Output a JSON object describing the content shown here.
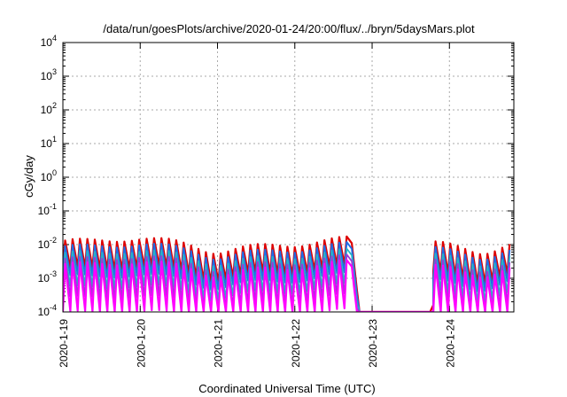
{
  "chart_data": {
    "type": "line",
    "title": "/data/run/goesPlots/archive/2020-01-24/20:00/flux/../bryn/5daysMars.plot",
    "xlabel": "Coordinated Universal Time (UTC)",
    "ylabel": "cGy/day",
    "yscale": "log",
    "ylim": [
      0.0001,
      10000
    ],
    "y_ticks": [
      {
        "base": "10",
        "exp": "-4"
      },
      {
        "base": "10",
        "exp": "-3"
      },
      {
        "base": "10",
        "exp": "-2"
      },
      {
        "base": "10",
        "exp": "-1"
      },
      {
        "base": "10",
        "exp": "0"
      },
      {
        "base": "10",
        "exp": "1"
      },
      {
        "base": "10",
        "exp": "2"
      },
      {
        "base": "10",
        "exp": "3"
      },
      {
        "base": "10",
        "exp": "4"
      }
    ],
    "xlim": [
      "2020-01-19T00:00",
      "2020-01-24T20:00"
    ],
    "x_ticks": [
      "2020-1-19",
      "2020-1-20",
      "2020-1-21",
      "2020-1-22",
      "2020-1-23",
      "2020-1-24"
    ],
    "grid": true,
    "legend": "none",
    "pattern": {
      "cycle_hours": 2.3,
      "gap_start": "2020-01-22T21:00",
      "gap_end": "2020-01-23T19:00"
    },
    "series": [
      {
        "color": "#dd0000",
        "peak": 0.011,
        "trough": 0.0016,
        "width": 2.2
      },
      {
        "color": "#1e6ee8",
        "peak": 0.0075,
        "trough": 0.00095,
        "width": 2.0
      },
      {
        "color": "#29b3c6",
        "peak": 0.0048,
        "trough": 0.00045,
        "width": 1.8
      },
      {
        "color": "#9a39d6",
        "peak": 0.0032,
        "trough": 0.00022,
        "width": 1.8
      },
      {
        "color": "#ff00ff",
        "peak": 0.0022,
        "trough": 8e-05,
        "width": 2.2
      }
    ]
  }
}
